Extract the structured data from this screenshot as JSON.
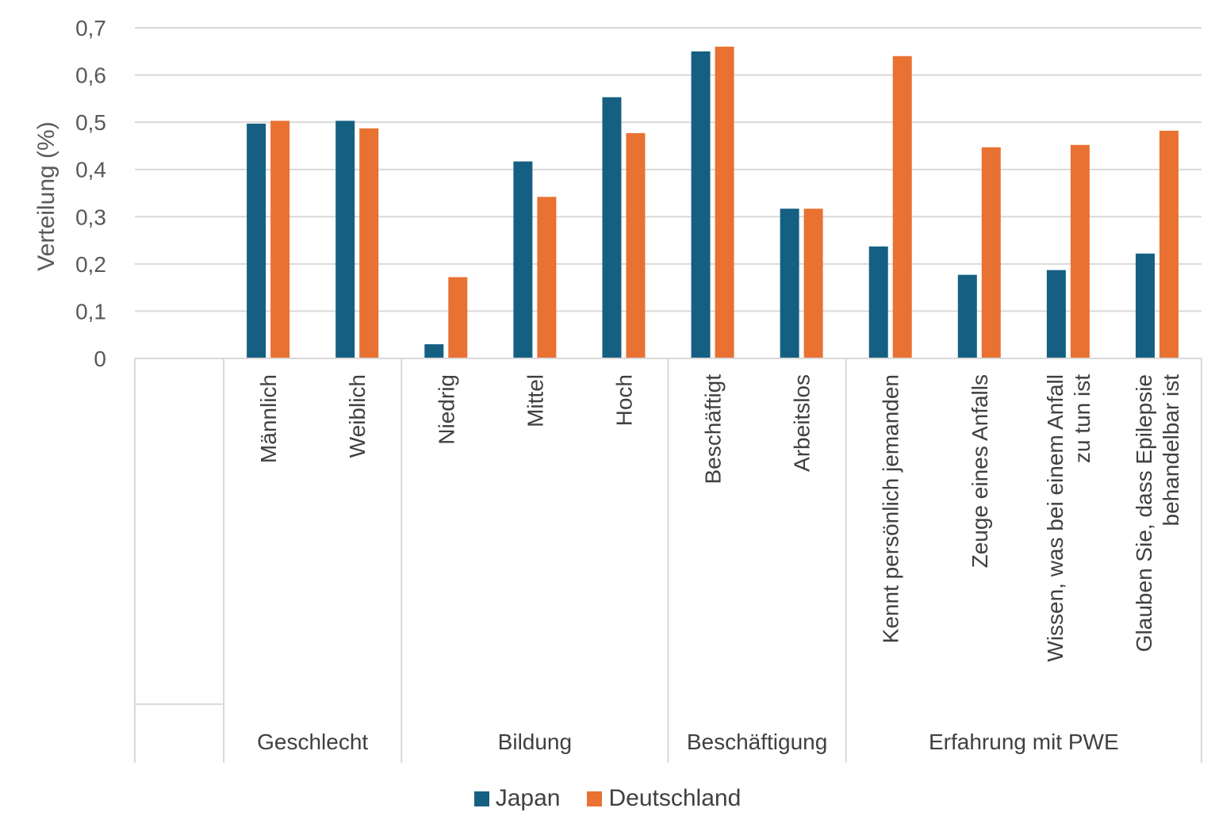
{
  "chart_data": {
    "type": "bar",
    "ylabel": "Verteilung (%)",
    "ylim": [
      0,
      0.7
    ],
    "yticks": [
      "0",
      "0,1",
      "0,2",
      "0,3",
      "0,4",
      "0,5",
      "0,6",
      "0,7"
    ],
    "grid": true,
    "legend_position": "bottom",
    "groups": [
      {
        "label": "",
        "size": 1
      },
      {
        "label": "Geschlecht",
        "size": 2
      },
      {
        "label": "Bildung",
        "size": 3
      },
      {
        "label": "Beschäftigung",
        "size": 2
      },
      {
        "label": "Erfahrung mit PWE",
        "size": 4
      }
    ],
    "categories": [
      "",
      "Männlich",
      "Weiblich",
      "Niedrig",
      "Mittel",
      "Hoch",
      "Beschäftigt",
      "Arbeitslos",
      "Kennt persönlich jemanden",
      "Zeuge eines Anfalls",
      "Wissen, was bei einem Anfall zu tun ist",
      "Glauben Sie, dass Epilepsie behandelbar ist"
    ],
    "category_lines": [
      [
        ""
      ],
      [
        "Männlich"
      ],
      [
        "Weiblich"
      ],
      [
        "Niedrig"
      ],
      [
        "Mittel"
      ],
      [
        "Hoch"
      ],
      [
        "Beschäftigt"
      ],
      [
        "Arbeitslos"
      ],
      [
        "Kennt persönlich jemanden"
      ],
      [
        "Zeuge eines Anfalls"
      ],
      [
        "Wissen, was bei einem Anfall",
        "zu tun ist"
      ],
      [
        "Glauben Sie, dass Epilepsie",
        "behandelbar ist"
      ]
    ],
    "series": [
      {
        "name": "Japan",
        "color": "#156082",
        "values": [
          null,
          0.497,
          0.503,
          0.03,
          0.417,
          0.553,
          0.65,
          0.317,
          0.237,
          0.177,
          0.187,
          0.222
        ]
      },
      {
        "name": "Deutschland",
        "color": "#E97132",
        "values": [
          null,
          0.503,
          0.487,
          0.172,
          0.342,
          0.477,
          0.66,
          0.317,
          0.64,
          0.447,
          0.452,
          0.482
        ]
      }
    ]
  },
  "legend": {
    "japan_label": "Japan",
    "germany_label": "Deutschland",
    "japan_color": "#156082",
    "germany_color": "#E97132"
  }
}
